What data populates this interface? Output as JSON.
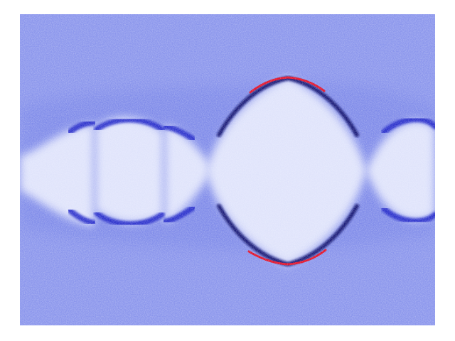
{
  "image": {
    "kind": "false-color intensity map",
    "palette": {
      "page_background": "#ffffff",
      "field": "#8a95ec",
      "field_light": "#a7b0f2",
      "field_dark": "#6b78e4",
      "lobe_fill": "#dfe3fb",
      "edge_dark": "#1a22c8",
      "edge_deep": "#070b6e",
      "edge_hot": "#e0102a"
    }
  }
}
